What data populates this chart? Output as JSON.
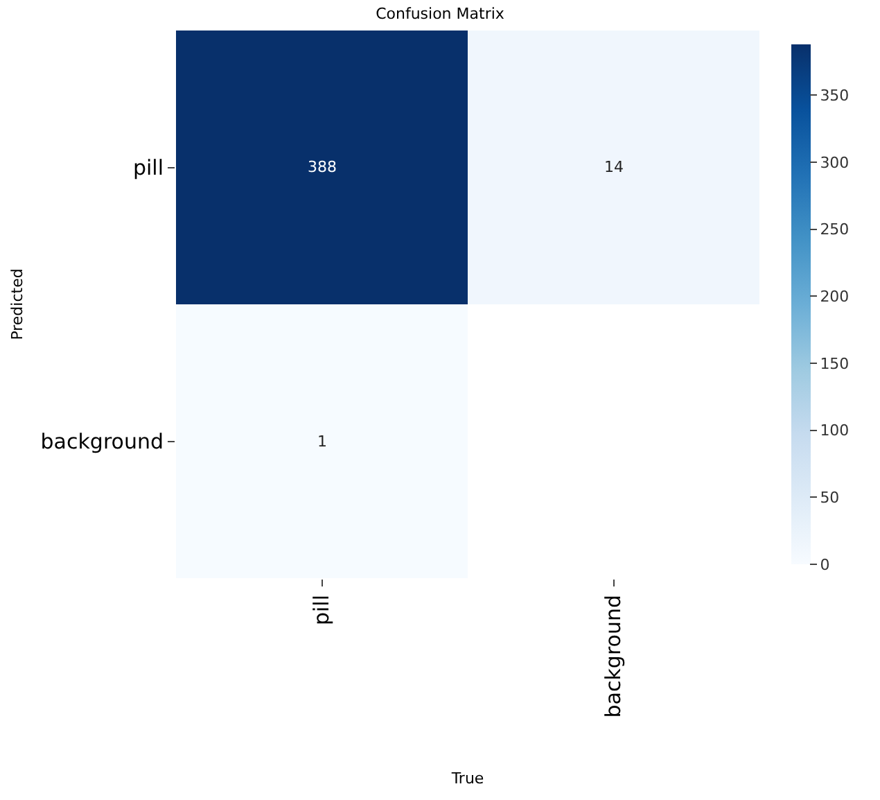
{
  "chart_data": {
    "type": "heatmap",
    "title": "Confusion Matrix",
    "xlabel": "True",
    "ylabel": "Predicted",
    "categories": [
      "pill",
      "background"
    ],
    "y_categories": [
      "pill",
      "background"
    ],
    "cells": [
      [
        388,
        14
      ],
      [
        1,
        null
      ]
    ],
    "clim": [
      0,
      388
    ],
    "cticks": [
      0,
      50,
      100,
      150,
      200,
      250,
      300,
      350
    ],
    "data_labels": true
  }
}
